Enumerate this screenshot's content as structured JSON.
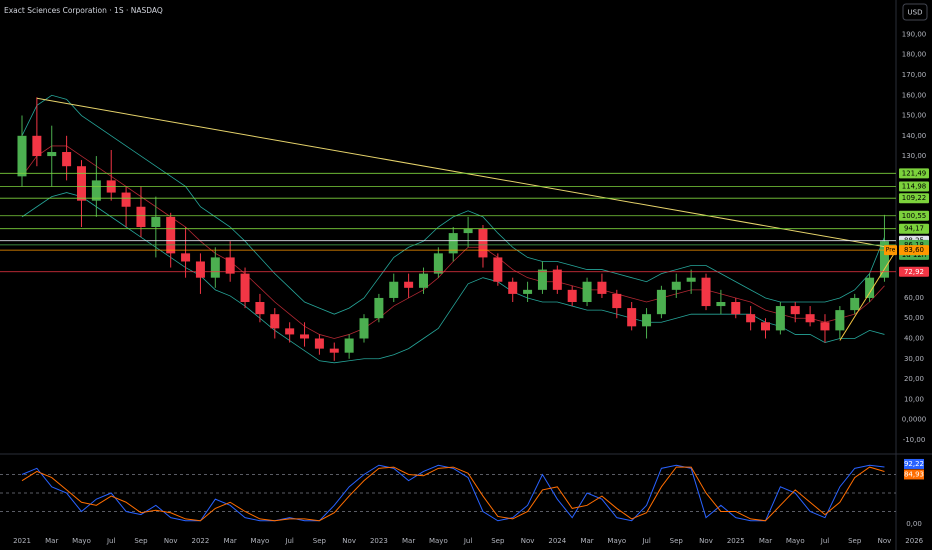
{
  "chart_data": [
    {
      "type": "candlestick",
      "title": "Exact Sciences Corporation · 1S · NASDAQ",
      "currency": "USD",
      "x": [
        "2021-01",
        "2021-02",
        "2021-03",
        "2021-04",
        "2021-05",
        "2021-06",
        "2021-07",
        "2021-08",
        "2021-09",
        "2021-10",
        "2021-11",
        "2021-12",
        "2022-01",
        "2022-02",
        "2022-03",
        "2022-04",
        "2022-05",
        "2022-06",
        "2022-07",
        "2022-08",
        "2022-09",
        "2022-10",
        "2022-11",
        "2022-12",
        "2023-01",
        "2023-02",
        "2023-03",
        "2023-04",
        "2023-05",
        "2023-06",
        "2023-07",
        "2023-08",
        "2023-09",
        "2023-10",
        "2023-11",
        "2023-12",
        "2024-01",
        "2024-02",
        "2024-03",
        "2024-04",
        "2024-05",
        "2024-06",
        "2024-07",
        "2024-08",
        "2024-09",
        "2024-10",
        "2024-11",
        "2024-12",
        "2025-01",
        "2025-02",
        "2025-03",
        "2025-04",
        "2025-05",
        "2025-06",
        "2025-07",
        "2025-08",
        "2025-09",
        "2025-10",
        "2025-11"
      ],
      "open": [
        120,
        140,
        130,
        132,
        125,
        108,
        118,
        112,
        105,
        95,
        100,
        82,
        78,
        70,
        80,
        72,
        58,
        52,
        45,
        42,
        40,
        35,
        33,
        40,
        50,
        60,
        68,
        65,
        72,
        82,
        92,
        94,
        80,
        68,
        62,
        64,
        74,
        64,
        58,
        68,
        62,
        55,
        46,
        52,
        64,
        68,
        70,
        56,
        58,
        52,
        48,
        44,
        56,
        52,
        48,
        44,
        54,
        60,
        70
      ],
      "high": [
        150,
        159,
        145,
        140,
        128,
        130,
        133,
        115,
        115,
        110,
        102,
        95,
        82,
        85,
        88,
        75,
        62,
        55,
        48,
        48,
        42,
        38,
        42,
        52,
        62,
        72,
        72,
        75,
        85,
        95,
        100,
        96,
        82,
        70,
        68,
        78,
        76,
        66,
        70,
        72,
        64,
        58,
        55,
        66,
        72,
        74,
        72,
        64,
        60,
        56,
        50,
        58,
        58,
        56,
        52,
        56,
        62,
        72,
        101
      ],
      "low": [
        115,
        125,
        115,
        118,
        95,
        100,
        108,
        95,
        90,
        80,
        75,
        70,
        62,
        65,
        68,
        55,
        48,
        40,
        38,
        36,
        32,
        29,
        30,
        38,
        48,
        58,
        60,
        62,
        70,
        78,
        85,
        75,
        66,
        58,
        58,
        62,
        62,
        56,
        56,
        60,
        50,
        44,
        40,
        50,
        60,
        62,
        54,
        52,
        50,
        44,
        40,
        42,
        48,
        46,
        38,
        40,
        52,
        58,
        68
      ],
      "close": [
        140,
        130,
        132,
        125,
        108,
        118,
        112,
        105,
        95,
        100,
        82,
        78,
        70,
        80,
        72,
        58,
        52,
        45,
        42,
        40,
        35,
        33,
        40,
        50,
        60,
        68,
        65,
        72,
        82,
        92,
        94,
        80,
        68,
        62,
        64,
        74,
        64,
        58,
        68,
        62,
        55,
        46,
        52,
        64,
        68,
        70,
        56,
        58,
        52,
        48,
        44,
        56,
        52,
        48,
        44,
        54,
        60,
        70,
        88
      ],
      "up_color": "#4caf50",
      "down_color": "#f23645",
      "bands": {
        "upper": [
          140,
          155,
          160,
          158,
          150,
          145,
          140,
          135,
          130,
          125,
          120,
          115,
          105,
          100,
          95,
          88,
          80,
          72,
          65,
          58,
          55,
          52,
          55,
          60,
          70,
          80,
          85,
          88,
          95,
          100,
          103,
          100,
          92,
          85,
          80,
          78,
          78,
          76,
          74,
          74,
          72,
          70,
          68,
          72,
          74,
          76,
          76,
          72,
          68,
          64,
          60,
          58,
          58,
          58,
          58,
          60,
          64,
          72,
          90
        ],
        "basis": [
          120,
          130,
          135,
          135,
          130,
          125,
          120,
          115,
          110,
          105,
          100,
          95,
          88,
          82,
          78,
          72,
          65,
          58,
          52,
          46,
          42,
          40,
          42,
          45,
          50,
          56,
          60,
          64,
          70,
          78,
          85,
          85,
          80,
          74,
          70,
          68,
          68,
          66,
          64,
          64,
          62,
          60,
          58,
          60,
          62,
          64,
          64,
          62,
          60,
          58,
          54,
          52,
          50,
          50,
          48,
          50,
          52,
          58,
          66
        ],
        "lower": [
          100,
          105,
          110,
          112,
          110,
          105,
          100,
          95,
          90,
          85,
          80,
          75,
          71,
          64,
          61,
          56,
          50,
          44,
          39,
          34,
          29,
          28,
          29,
          30,
          30,
          32,
          35,
          40,
          45,
          56,
          67,
          70,
          68,
          63,
          60,
          58,
          58,
          56,
          54,
          54,
          52,
          50,
          48,
          48,
          50,
          52,
          52,
          52,
          52,
          52,
          48,
          46,
          42,
          42,
          38,
          40,
          40,
          44,
          42
        ],
        "band_color": "#26a69a",
        "basis_color": "#b22833"
      },
      "trendlines": [
        {
          "x": [
            "2021-02",
            "2025-12"
          ],
          "y": [
            158.5,
            84
          ],
          "color": "#e6d36b"
        },
        {
          "x": [
            "2025-08",
            "2025-12"
          ],
          "y": [
            39,
            86
          ],
          "color": "#f5c542"
        }
      ],
      "levels": [
        {
          "value": 121.49,
          "label": "121,49",
          "color": "#7cd23c"
        },
        {
          "value": 114.98,
          "label": "114,98",
          "color": "#7cd23c"
        },
        {
          "value": 109.22,
          "label": "109,22",
          "color": "#7cd23c"
        },
        {
          "value": 100.55,
          "label": "100,55",
          "color": "#7cd23c"
        },
        {
          "value": 94.17,
          "label": "94,17",
          "color": "#7cd23c"
        },
        {
          "value": 88.25,
          "label": "88,25",
          "color": "#e0e3eb"
        },
        {
          "value": 86.18,
          "label": "86,18",
          "color": "#4caf50",
          "sublabel": "1d 12h"
        },
        {
          "value": 83.6,
          "label": "83,60",
          "color": "#ff9800",
          "tag": "Pre"
        },
        {
          "value": 72.92,
          "label": "72,92",
          "color": "#f23645"
        }
      ],
      "ylim": [
        -16,
        207
      ],
      "yticks": [
        {
          "value": 190,
          "label": "190,00"
        },
        {
          "value": 180,
          "label": "180,00"
        },
        {
          "value": 170,
          "label": "170,00"
        },
        {
          "value": 160,
          "label": "160,00"
        },
        {
          "value": 150,
          "label": "150,00"
        },
        {
          "value": 140,
          "label": "140,00"
        },
        {
          "value": 130,
          "label": "130,00"
        },
        {
          "value": 60,
          "label": "60,00"
        },
        {
          "value": 50,
          "label": "50,00"
        },
        {
          "value": 40,
          "label": "40,00"
        },
        {
          "value": 30,
          "label": "30,00"
        },
        {
          "value": 20,
          "label": "20,00"
        },
        {
          "value": 10,
          "label": "10,00"
        },
        {
          "value": 0,
          "label": "0,0000"
        },
        {
          "value": -10,
          "label": "-10,00"
        }
      ],
      "xticks": [
        {
          "value": "2021-01",
          "label": "2021"
        },
        {
          "value": "2021-03",
          "label": "Mar"
        },
        {
          "value": "2021-05",
          "label": "Mayo"
        },
        {
          "value": "2021-07",
          "label": "Jul"
        },
        {
          "value": "2021-09",
          "label": "Sep"
        },
        {
          "value": "2021-11",
          "label": "Nov"
        },
        {
          "value": "2022-01",
          "label": "2022"
        },
        {
          "value": "2022-03",
          "label": "Mar"
        },
        {
          "value": "2022-05",
          "label": "Mayo"
        },
        {
          "value": "2022-07",
          "label": "Jul"
        },
        {
          "value": "2022-09",
          "label": "Sep"
        },
        {
          "value": "2022-11",
          "label": "Nov"
        },
        {
          "value": "2023-01",
          "label": "2023"
        },
        {
          "value": "2023-03",
          "label": "Mar"
        },
        {
          "value": "2023-05",
          "label": "Mayo"
        },
        {
          "value": "2023-07",
          "label": "Jul"
        },
        {
          "value": "2023-09",
          "label": "Sep"
        },
        {
          "value": "2023-11",
          "label": "Nov"
        },
        {
          "value": "2024-01",
          "label": "2024"
        },
        {
          "value": "2024-03",
          "label": "Mar"
        },
        {
          "value": "2024-05",
          "label": "Mayo"
        },
        {
          "value": "2024-07",
          "label": "Jul"
        },
        {
          "value": "2024-09",
          "label": "Sep"
        },
        {
          "value": "2024-11",
          "label": "Nov"
        },
        {
          "value": "2025-01",
          "label": "2025"
        },
        {
          "value": "2025-03",
          "label": "Mar"
        },
        {
          "value": "2025-05",
          "label": "Mayo"
        },
        {
          "value": "2025-07",
          "label": "Jul"
        },
        {
          "value": "2025-09",
          "label": "Sep"
        },
        {
          "value": "2025-11",
          "label": "Nov"
        },
        {
          "value": "2026-01",
          "label": "2026"
        }
      ]
    },
    {
      "type": "line",
      "series": [
        {
          "color": "#2962ff",
          "values": [
            80,
            90,
            60,
            50,
            20,
            40,
            50,
            20,
            15,
            30,
            10,
            5,
            5,
            40,
            30,
            10,
            5,
            5,
            10,
            5,
            5,
            30,
            60,
            80,
            95,
            90,
            70,
            85,
            95,
            90,
            75,
            20,
            5,
            10,
            30,
            80,
            40,
            10,
            50,
            40,
            10,
            5,
            30,
            90,
            95,
            90,
            10,
            30,
            10,
            5,
            5,
            60,
            50,
            20,
            10,
            60,
            90,
            95,
            92.22
          ],
          "value_labels": [
            null,
            null,
            null,
            null,
            null,
            null,
            null,
            null,
            null,
            null,
            null,
            null,
            null,
            null,
            null,
            null,
            null,
            null,
            null,
            null,
            null,
            null,
            null,
            null,
            null,
            null,
            null,
            null,
            null,
            null,
            null,
            null,
            null,
            null,
            null,
            null,
            null,
            null,
            null,
            null,
            null,
            null,
            null,
            null,
            null,
            null,
            null,
            null,
            null,
            null,
            null,
            null,
            null,
            null,
            null,
            null,
            null,
            null,
            "92,22"
          ]
        },
        {
          "color": "#ff6d00",
          "values": [
            70,
            85,
            75,
            55,
            35,
            30,
            45,
            35,
            18,
            22,
            18,
            8,
            5,
            25,
            35,
            20,
            8,
            5,
            8,
            8,
            5,
            18,
            45,
            70,
            90,
            92,
            80,
            78,
            90,
            92,
            82,
            45,
            12,
            8,
            20,
            55,
            60,
            25,
            30,
            45,
            25,
            8,
            18,
            60,
            92,
            92,
            50,
            20,
            20,
            8,
            5,
            30,
            55,
            35,
            15,
            35,
            75,
            92,
            84.93
          ],
          "value_labels": [
            null,
            null,
            null,
            null,
            null,
            null,
            null,
            null,
            null,
            null,
            null,
            null,
            null,
            null,
            null,
            null,
            null,
            null,
            null,
            null,
            null,
            null,
            null,
            null,
            null,
            null,
            null,
            null,
            null,
            null,
            null,
            null,
            null,
            null,
            null,
            null,
            null,
            null,
            null,
            null,
            null,
            null,
            null,
            null,
            null,
            null,
            null,
            null,
            null,
            null,
            null,
            null,
            null,
            null,
            null,
            null,
            null,
            null,
            "84,93"
          ]
        }
      ],
      "levels": [
        80,
        50,
        20
      ],
      "ylim": [
        -10,
        110
      ],
      "yticks": [
        {
          "value": 0,
          "label": "0,00"
        }
      ]
    }
  ]
}
